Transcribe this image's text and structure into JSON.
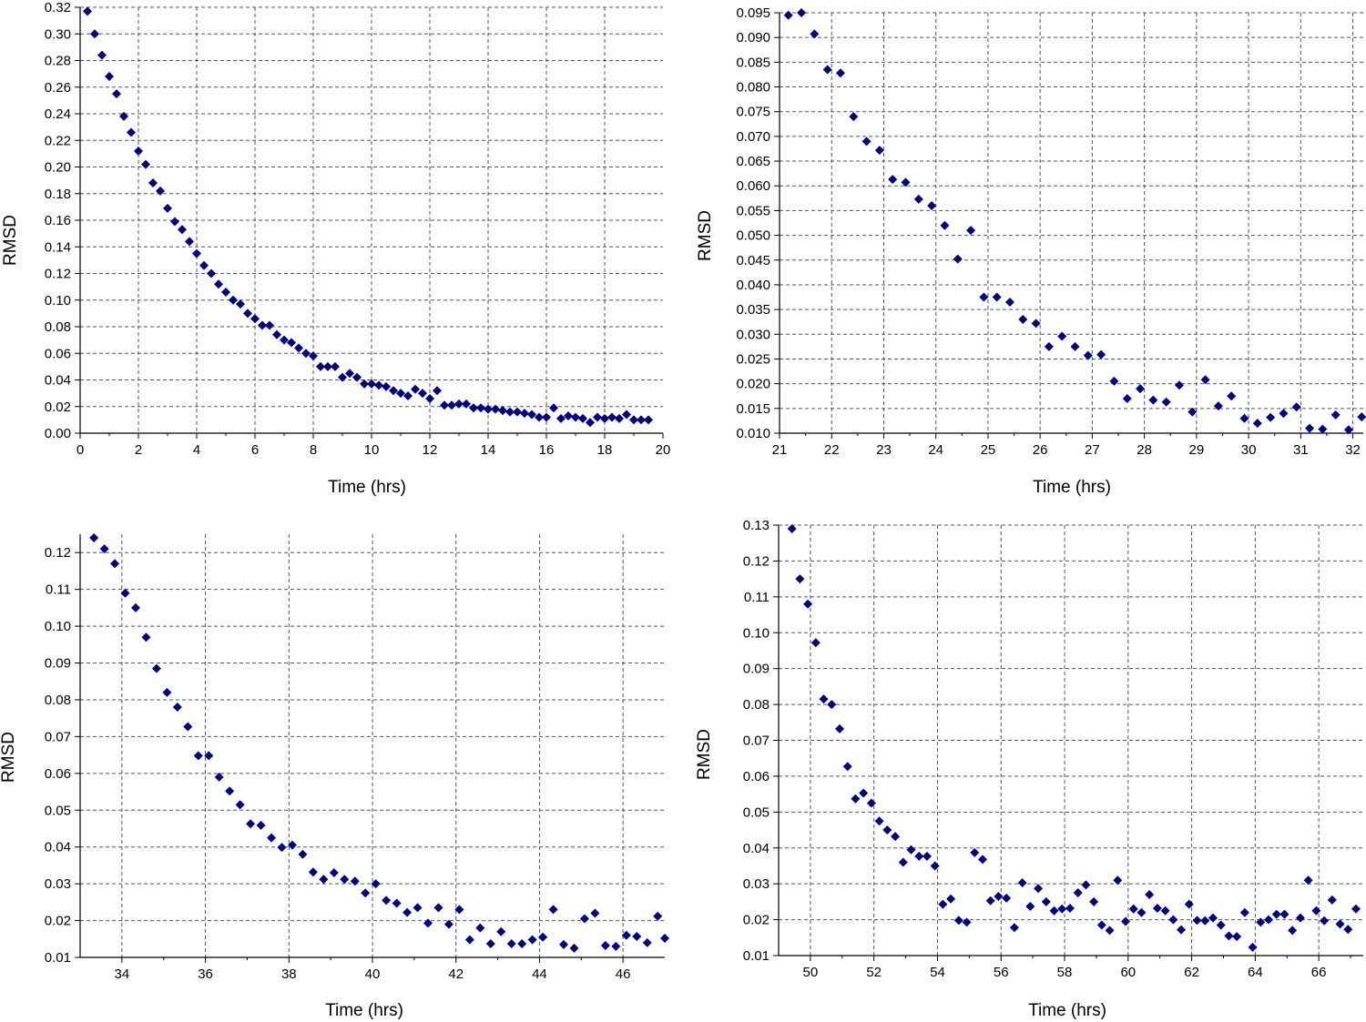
{
  "marker_color": "#000080",
  "chart_data": [
    {
      "type": "scatter",
      "title": "",
      "xlabel": "Time (hrs)",
      "ylabel": "RMSD",
      "xlim": [
        0,
        20
      ],
      "ylim": [
        0,
        0.32
      ],
      "xticks": [
        0,
        2,
        4,
        6,
        8,
        10,
        12,
        14,
        16,
        18,
        20
      ],
      "xtick_labels": [
        "0",
        "2",
        "4",
        "6",
        "8",
        "10",
        "12",
        "14",
        "16",
        "18",
        "20"
      ],
      "yticks": [
        0,
        0.02,
        0.04,
        0.06,
        0.08,
        0.1,
        0.12,
        0.14,
        0.16,
        0.18,
        0.2,
        0.22,
        0.24,
        0.26,
        0.28,
        0.3,
        0.32
      ],
      "ytick_labels": [
        "0.00",
        "0.02",
        "0.04",
        "0.06",
        "0.08",
        "0.10",
        "0.12",
        "0.14",
        "0.16",
        "0.18",
        "0.20",
        "0.22",
        "0.24",
        "0.26",
        "0.28",
        "0.30",
        "0.32"
      ],
      "grid": true,
      "series": [
        {
          "name": "RMSD",
          "x": [
            0.25,
            0.5,
            0.75,
            1.0,
            1.25,
            1.5,
            1.75,
            2.0,
            2.25,
            2.5,
            2.75,
            3.0,
            3.25,
            3.5,
            3.75,
            4.0,
            4.25,
            4.5,
            4.75,
            5.0,
            5.25,
            5.5,
            5.75,
            6.0,
            6.25,
            6.5,
            6.75,
            7.0,
            7.25,
            7.5,
            7.75,
            8.0,
            8.25,
            8.5,
            8.75,
            9.0,
            9.25,
            9.5,
            9.75,
            10.0,
            10.25,
            10.5,
            10.75,
            11.0,
            11.25,
            11.5,
            11.75,
            12.0,
            12.25,
            12.5,
            12.75,
            13.0,
            13.25,
            13.5,
            13.75,
            14.0,
            14.25,
            14.5,
            14.75,
            15.0,
            15.25,
            15.5,
            15.75,
            16.0,
            16.25,
            16.5,
            16.75,
            17.0,
            17.25,
            17.5,
            17.75,
            18.0,
            18.25,
            18.5,
            18.75,
            19.0,
            19.25,
            19.5
          ],
          "y": [
            0.317,
            0.3,
            0.284,
            0.268,
            0.255,
            0.238,
            0.226,
            0.212,
            0.202,
            0.188,
            0.182,
            0.169,
            0.159,
            0.153,
            0.144,
            0.135,
            0.126,
            0.12,
            0.112,
            0.106,
            0.1,
            0.097,
            0.09,
            0.086,
            0.081,
            0.081,
            0.074,
            0.07,
            0.068,
            0.064,
            0.06,
            0.058,
            0.05,
            0.05,
            0.05,
            0.042,
            0.045,
            0.042,
            0.037,
            0.037,
            0.036,
            0.035,
            0.032,
            0.03,
            0.028,
            0.033,
            0.03,
            0.026,
            0.032,
            0.021,
            0.021,
            0.022,
            0.022,
            0.019,
            0.019,
            0.018,
            0.018,
            0.017,
            0.016,
            0.016,
            0.015,
            0.014,
            0.012,
            0.012,
            0.019,
            0.011,
            0.013,
            0.012,
            0.011,
            0.008,
            0.012,
            0.011,
            0.012,
            0.011,
            0.014,
            0.01,
            0.01,
            0.01
          ]
        }
      ]
    },
    {
      "type": "scatter",
      "title": "",
      "xlabel": "Time (hrs)",
      "ylabel": "RMSD",
      "xlim": [
        21,
        32.2
      ],
      "ylim": [
        0.01,
        0.095
      ],
      "xticks": [
        21,
        22,
        23,
        24,
        25,
        26,
        27,
        28,
        29,
        30,
        31,
        32
      ],
      "xtick_labels": [
        "21",
        "22",
        "23",
        "24",
        "25",
        "26",
        "27",
        "28",
        "29",
        "30",
        "31",
        "32"
      ],
      "yticks": [
        0.01,
        0.015,
        0.02,
        0.025,
        0.03,
        0.035,
        0.04,
        0.045,
        0.05,
        0.055,
        0.06,
        0.065,
        0.07,
        0.075,
        0.08,
        0.085,
        0.09,
        0.095
      ],
      "ytick_labels": [
        "0.010",
        "0.015",
        "0.020",
        "0.025",
        "0.030",
        "0.035",
        "0.040",
        "0.045",
        "0.050",
        "0.055",
        "0.060",
        "0.065",
        "0.070",
        "0.075",
        "0.080",
        "0.085",
        "0.090",
        "0.095"
      ],
      "grid": true,
      "series": [
        {
          "name": "RMSD",
          "x": [
            21.17,
            21.42,
            21.67,
            21.92,
            22.17,
            22.42,
            22.67,
            22.92,
            23.17,
            23.42,
            23.67,
            23.92,
            24.17,
            24.42,
            24.67,
            24.92,
            25.17,
            25.42,
            25.67,
            25.92,
            26.17,
            26.42,
            26.67,
            26.92,
            27.17,
            27.42,
            27.67,
            27.92,
            28.17,
            28.42,
            28.67,
            28.92,
            29.17,
            29.42,
            29.67,
            29.92,
            30.17,
            30.42,
            30.67,
            30.92,
            31.17,
            31.42,
            31.67,
            31.92,
            32.17
          ],
          "y": [
            0.0945,
            0.095,
            0.0907,
            0.0835,
            0.0828,
            0.074,
            0.069,
            0.0672,
            0.0613,
            0.0607,
            0.0573,
            0.056,
            0.052,
            0.0452,
            0.051,
            0.0375,
            0.0375,
            0.0365,
            0.033,
            0.0322,
            0.0275,
            0.0296,
            0.0275,
            0.0257,
            0.0259,
            0.0205,
            0.017,
            0.019,
            0.0167,
            0.0163,
            0.0197,
            0.0143,
            0.0208,
            0.0155,
            0.0175,
            0.013,
            0.012,
            0.0132,
            0.014,
            0.0153,
            0.011,
            0.0108,
            0.0137,
            0.0107,
            0.0133
          ]
        }
      ]
    },
    {
      "type": "scatter",
      "title": "",
      "xlabel": "Time (hrs)",
      "ylabel": "RMSD",
      "xlim": [
        33,
        47
      ],
      "ylim": [
        0.01,
        0.125
      ],
      "xticks": [
        34,
        36,
        38,
        40,
        42,
        44,
        46
      ],
      "xtick_labels": [
        "34",
        "36",
        "38",
        "40",
        "42",
        "44",
        "46"
      ],
      "yticks": [
        0.01,
        0.02,
        0.03,
        0.04,
        0.05,
        0.06,
        0.07,
        0.08,
        0.09,
        0.1,
        0.11,
        0.12
      ],
      "ytick_labels": [
        "0.01",
        "0.02",
        "0.03",
        "0.04",
        "0.05",
        "0.06",
        "0.07",
        "0.08",
        "0.09",
        "0.10",
        "0.11",
        "0.12"
      ],
      "grid": true,
      "series": [
        {
          "name": "RMSD",
          "x": [
            33.33,
            33.58,
            33.83,
            34.08,
            34.33,
            34.58,
            34.83,
            35.08,
            35.33,
            35.58,
            35.83,
            36.08,
            36.33,
            36.58,
            36.83,
            37.08,
            37.33,
            37.58,
            37.83,
            38.08,
            38.33,
            38.58,
            38.83,
            39.08,
            39.33,
            39.58,
            39.83,
            40.08,
            40.33,
            40.58,
            40.83,
            41.08,
            41.33,
            41.58,
            41.83,
            42.08,
            42.33,
            42.58,
            42.83,
            43.08,
            43.33,
            43.58,
            43.83,
            44.08,
            44.33,
            44.58,
            44.83,
            45.08,
            45.33,
            45.58,
            45.83,
            46.08,
            46.33,
            46.58,
            46.83,
            47.0
          ],
          "y": [
            0.124,
            0.121,
            0.117,
            0.109,
            0.105,
            0.097,
            0.0885,
            0.082,
            0.078,
            0.0727,
            0.0648,
            0.0648,
            0.059,
            0.0552,
            0.0515,
            0.0463,
            0.0459,
            0.0425,
            0.0399,
            0.0405,
            0.038,
            0.0332,
            0.0312,
            0.033,
            0.0312,
            0.0307,
            0.0275,
            0.03,
            0.0255,
            0.0247,
            0.0222,
            0.0235,
            0.0193,
            0.0235,
            0.019,
            0.023,
            0.0148,
            0.018,
            0.0137,
            0.017,
            0.0137,
            0.0137,
            0.0148,
            0.0155,
            0.023,
            0.0135,
            0.0125,
            0.0205,
            0.022,
            0.0132,
            0.013,
            0.016,
            0.0157,
            0.014,
            0.0212,
            0.0152
          ]
        }
      ]
    },
    {
      "type": "scatter",
      "title": "",
      "xlabel": "Time (hrs)",
      "ylabel": "RMSD",
      "xlim": [
        49,
        67.4
      ],
      "ylim": [
        0.01,
        0.13
      ],
      "xticks": [
        50,
        52,
        54,
        56,
        58,
        60,
        62,
        64,
        66
      ],
      "xtick_labels": [
        "50",
        "52",
        "54",
        "56",
        "58",
        "60",
        "62",
        "64",
        "66"
      ],
      "yticks": [
        0.01,
        0.02,
        0.03,
        0.04,
        0.05,
        0.06,
        0.07,
        0.08,
        0.09,
        0.1,
        0.11,
        0.12,
        0.13
      ],
      "ytick_labels": [
        "0.01",
        "0.02",
        "0.03",
        "0.04",
        "0.05",
        "0.06",
        "0.07",
        "0.08",
        "0.09",
        "0.10",
        "0.11",
        "0.12",
        "0.13"
      ],
      "grid": true,
      "series": [
        {
          "name": "RMSD",
          "x": [
            49.42,
            49.67,
            49.92,
            50.17,
            50.42,
            50.67,
            50.92,
            51.17,
            51.42,
            51.67,
            51.92,
            52.17,
            52.42,
            52.67,
            52.92,
            53.17,
            53.42,
            53.67,
            53.92,
            54.17,
            54.42,
            54.67,
            54.92,
            55.17,
            55.42,
            55.67,
            55.92,
            56.17,
            56.42,
            56.67,
            56.92,
            57.17,
            57.42,
            57.67,
            57.92,
            58.17,
            58.42,
            58.67,
            58.92,
            59.17,
            59.42,
            59.67,
            59.92,
            60.17,
            60.42,
            60.67,
            60.92,
            61.17,
            61.42,
            61.67,
            61.92,
            62.17,
            62.42,
            62.67,
            62.92,
            63.17,
            63.42,
            63.67,
            63.92,
            64.17,
            64.42,
            64.67,
            64.92,
            65.17,
            65.42,
            65.67,
            65.92,
            66.17,
            66.42,
            66.67,
            66.92,
            67.17
          ],
          "y": [
            0.129,
            0.115,
            0.108,
            0.0972,
            0.0815,
            0.08,
            0.0732,
            0.0627,
            0.0537,
            0.0553,
            0.0525,
            0.0475,
            0.045,
            0.0432,
            0.036,
            0.0395,
            0.0377,
            0.0377,
            0.035,
            0.0243,
            0.0258,
            0.0198,
            0.0193,
            0.0387,
            0.0368,
            0.0253,
            0.0265,
            0.026,
            0.0178,
            0.0303,
            0.0237,
            0.0287,
            0.025,
            0.0225,
            0.023,
            0.0232,
            0.0275,
            0.0297,
            0.025,
            0.0185,
            0.017,
            0.031,
            0.0195,
            0.023,
            0.022,
            0.027,
            0.0232,
            0.0225,
            0.02,
            0.0172,
            0.0243,
            0.0198,
            0.0197,
            0.0205,
            0.0185,
            0.0155,
            0.0153,
            0.022,
            0.0123,
            0.0193,
            0.02,
            0.0215,
            0.0215,
            0.017,
            0.0205,
            0.031,
            0.0225,
            0.0197,
            0.0255,
            0.0188,
            0.0173,
            0.023
          ]
        }
      ]
    }
  ]
}
